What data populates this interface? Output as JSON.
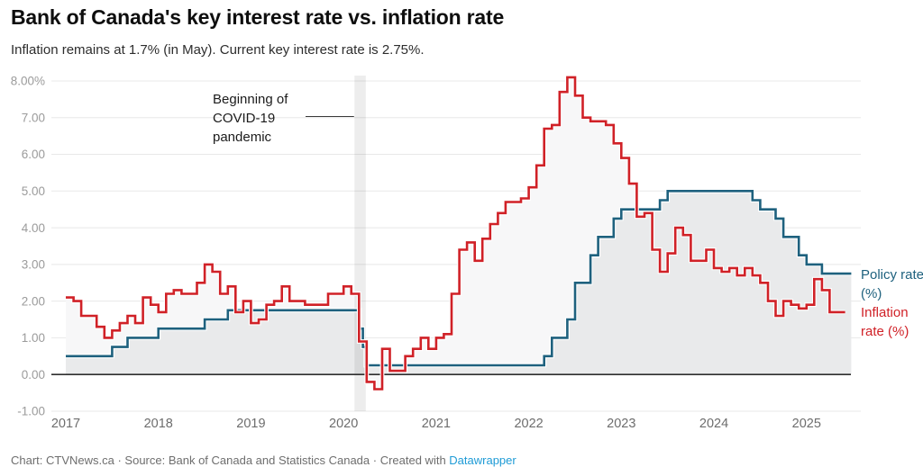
{
  "header": {
    "title": "Bank of Canada's key interest rate vs. inflation rate",
    "subtitle": "Inflation remains at 1.7% (in May). Current key interest rate is 2.75%."
  },
  "annotation": {
    "text": "Beginning of COVID-19 pandemic"
  },
  "legend": [
    {
      "label": "Policy rate (%)",
      "color": "#1e617e"
    },
    {
      "label": "Inflation rate (%)",
      "color": "#d02127"
    }
  ],
  "footer": {
    "prefix": "Chart: CTVNews.ca · Source: Bank of Canada and Statistics Canada · Created with ",
    "link_label": "Datawrapper",
    "link_color": "#1e9bd6"
  },
  "colors": {
    "policy_line": "#1e617e",
    "inflation_line": "#d02127",
    "policy_fill": "#e9eaeb",
    "inflation_fill": "#f7f7f8",
    "gridline": "#e8e8e8",
    "zero_axis": "#2f2f2f",
    "covid_band": "rgba(0,0,0,0.07)",
    "y_label": "#9b9b9b",
    "x_label": "#6d6d6d"
  },
  "chart_data": {
    "type": "line",
    "step": true,
    "title": "Bank of Canada's key interest rate vs. inflation rate",
    "x_unit": "month",
    "x_range": [
      "2017-01",
      "2025-06"
    ],
    "ylim": [
      -1,
      8.3
    ],
    "grid": true,
    "legend_position": "right",
    "x_ticks": [
      "2017",
      "2018",
      "2019",
      "2020",
      "2021",
      "2022",
      "2023",
      "2024",
      "2025"
    ],
    "y_ticks": [
      {
        "v": 8,
        "label": "8.00%"
      },
      {
        "v": 7,
        "label": "7.00"
      },
      {
        "v": 6,
        "label": "6.00"
      },
      {
        "v": 5,
        "label": "5.00"
      },
      {
        "v": 4,
        "label": "4.00"
      },
      {
        "v": 3,
        "label": "3.00"
      },
      {
        "v": 2,
        "label": "2.00"
      },
      {
        "v": 1,
        "label": "1.00"
      },
      {
        "v": 0,
        "label": "0.00"
      },
      {
        "v": -1,
        "label": "-1.00"
      }
    ],
    "series": [
      {
        "name": "Policy rate (%)",
        "kind": "breakpoints",
        "end": "2025-06",
        "points": [
          [
            "2017-01",
            0.5
          ],
          [
            "2017-07",
            0.75
          ],
          [
            "2017-09",
            1.0
          ],
          [
            "2018-01",
            1.25
          ],
          [
            "2018-07",
            1.5
          ],
          [
            "2018-10",
            1.75
          ],
          [
            "2020-03-04",
            1.25
          ],
          [
            "2020-03-16",
            0.75
          ],
          [
            "2020-03-27",
            0.25
          ],
          [
            "2022-03",
            0.5
          ],
          [
            "2022-04",
            1.0
          ],
          [
            "2022-06",
            1.5
          ],
          [
            "2022-07",
            2.5
          ],
          [
            "2022-09",
            3.25
          ],
          [
            "2022-10",
            3.75
          ],
          [
            "2022-12",
            4.25
          ],
          [
            "2023-01",
            4.5
          ],
          [
            "2023-06",
            4.75
          ],
          [
            "2023-07",
            5.0
          ],
          [
            "2024-06",
            4.75
          ],
          [
            "2024-07",
            4.5
          ],
          [
            "2024-09",
            4.25
          ],
          [
            "2024-10",
            3.75
          ],
          [
            "2024-12",
            3.25
          ],
          [
            "2025-01",
            3.0
          ],
          [
            "2025-03",
            2.75
          ]
        ]
      },
      {
        "name": "Inflation rate (%)",
        "kind": "monthly",
        "start": "2017-01",
        "values": [
          2.1,
          2.0,
          1.6,
          1.6,
          1.3,
          1.0,
          1.2,
          1.4,
          1.6,
          1.4,
          2.1,
          1.9,
          1.7,
          2.2,
          2.3,
          2.2,
          2.2,
          2.5,
          3.0,
          2.8,
          2.2,
          2.4,
          1.7,
          2.0,
          1.4,
          1.5,
          1.9,
          2.0,
          2.4,
          2.0,
          2.0,
          1.9,
          1.9,
          1.9,
          2.2,
          2.2,
          2.4,
          2.2,
          0.9,
          -0.2,
          -0.4,
          0.7,
          0.1,
          0.1,
          0.5,
          0.7,
          1.0,
          0.7,
          1.0,
          1.1,
          2.2,
          3.4,
          3.6,
          3.1,
          3.7,
          4.1,
          4.4,
          4.7,
          4.7,
          4.8,
          5.1,
          5.7,
          6.7,
          6.8,
          7.7,
          8.1,
          7.6,
          7.0,
          6.9,
          6.9,
          6.8,
          6.3,
          5.9,
          5.2,
          4.3,
          4.4,
          3.4,
          2.8,
          3.3,
          4.0,
          3.8,
          3.1,
          3.1,
          3.4,
          2.9,
          2.8,
          2.9,
          2.7,
          2.9,
          2.7,
          2.5,
          2.0,
          1.6,
          2.0,
          1.9,
          1.8,
          1.9,
          2.6,
          2.3,
          1.7,
          1.7
        ]
      }
    ],
    "covid_band": {
      "date": "2020-03",
      "label": "Beginning of COVID-19 pandemic"
    }
  }
}
